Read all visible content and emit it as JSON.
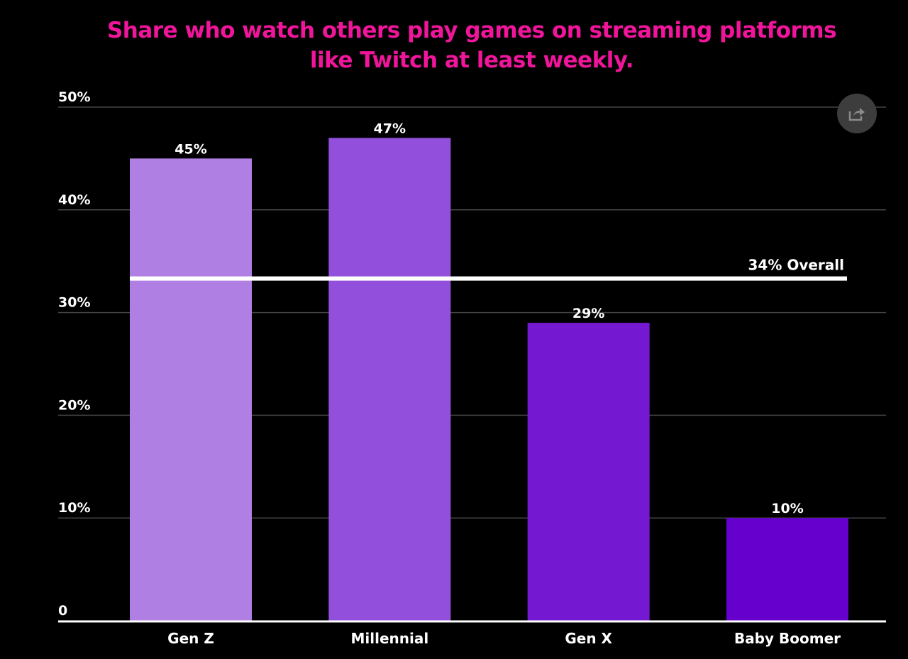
{
  "chart_data": {
    "type": "bar",
    "title": "Share who watch others play games on streaming platforms like Twitch at least weekly.",
    "title_lines": [
      "Share who watch others play games on streaming platforms",
      "like Twitch at least weekly."
    ],
    "categories": [
      "Gen Z",
      "Millennial",
      "Gen X",
      "Baby Boomer"
    ],
    "values": [
      45,
      47,
      29,
      10
    ],
    "data_labels": [
      "45%",
      "47%",
      "29%",
      "10%"
    ],
    "bar_colors": [
      "#b07fe3",
      "#924fdb",
      "#7418d1",
      "#6600cc"
    ],
    "ylim": [
      0,
      50
    ],
    "yticks": [
      0,
      10,
      20,
      30,
      40,
      50
    ],
    "ytick_labels": [
      "0",
      "10%",
      "20%",
      "30%",
      "40%",
      "50%"
    ],
    "grid": true,
    "reference_line": {
      "value": 34,
      "label": "34% Overall",
      "color": "#ffffff"
    },
    "xlabel": "",
    "ylabel": ""
  },
  "colors": {
    "background": "#000000",
    "title": "#f0159b",
    "grid": "#444444",
    "text": "#ffffff"
  },
  "share_button": {
    "icon": "share-icon"
  }
}
